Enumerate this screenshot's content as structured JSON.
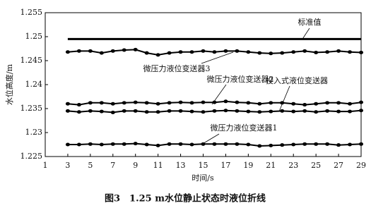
{
  "chart_data": {
    "type": "line",
    "title": "图3　1.25 m水位静止状态时液位折线",
    "x_label": "时间/s",
    "y_label": "水位高度/m",
    "x": [
      3,
      4,
      5,
      6,
      7,
      8,
      9,
      10,
      11,
      12,
      13,
      14,
      15,
      16,
      17,
      18,
      19,
      20,
      21,
      22,
      23,
      24,
      25,
      26,
      27,
      28,
      29
    ],
    "xlim": [
      1,
      29
    ],
    "xticks": [
      1,
      3,
      5,
      7,
      9,
      11,
      13,
      15,
      17,
      19,
      21,
      23,
      25,
      27,
      29
    ],
    "ylim": [
      1.225,
      1.255
    ],
    "yticks": [
      1.225,
      1.23,
      1.235,
      1.24,
      1.245,
      1.25,
      1.255
    ],
    "series": [
      {
        "name": "标准值",
        "color": "#000000",
        "markers": false,
        "values": [
          1.2495,
          1.2495,
          1.2495,
          1.2495,
          1.2495,
          1.2495,
          1.2495,
          1.2495,
          1.2495,
          1.2495,
          1.2495,
          1.2495,
          1.2495,
          1.2495,
          1.2495,
          1.2495,
          1.2495,
          1.2495,
          1.2495,
          1.2495,
          1.2495,
          1.2495,
          1.2495,
          1.2495,
          1.2495,
          1.2495,
          1.2495
        ]
      },
      {
        "name": "微压力液位变送器3",
        "color": "#000000",
        "markers": true,
        "values": [
          1.2468,
          1.247,
          1.247,
          1.2466,
          1.247,
          1.2472,
          1.2473,
          1.2466,
          1.2462,
          1.2466,
          1.2468,
          1.2468,
          1.247,
          1.2468,
          1.247,
          1.247,
          1.2468,
          1.2466,
          1.2465,
          1.2466,
          1.2468,
          1.247,
          1.2467,
          1.2468,
          1.247,
          1.2468,
          1.2467
        ]
      },
      {
        "name": "微压力液位变送器2",
        "color": "#000000",
        "markers": true,
        "values": [
          1.236,
          1.2358,
          1.2362,
          1.2362,
          1.236,
          1.2362,
          1.2363,
          1.2362,
          1.236,
          1.2362,
          1.2363,
          1.2362,
          1.2363,
          1.2363,
          1.2365,
          1.2363,
          1.2362,
          1.236,
          1.2362,
          1.2362,
          1.236,
          1.2358,
          1.236,
          1.2362,
          1.2362,
          1.236,
          1.2363
        ]
      },
      {
        "name": "投入式液位变送器",
        "color": "#000000",
        "markers": true,
        "values": [
          1.2345,
          1.2343,
          1.2345,
          1.2344,
          1.2342,
          1.2345,
          1.2345,
          1.2343,
          1.2343,
          1.2345,
          1.2345,
          1.2344,
          1.2343,
          1.2345,
          1.2346,
          1.2345,
          1.2344,
          1.2343,
          1.2344,
          1.2345,
          1.2344,
          1.2345,
          1.2343,
          1.2345,
          1.2344,
          1.2344,
          1.2346
        ]
      },
      {
        "name": "微压力液位变送器1",
        "color": "#000000",
        "markers": true,
        "values": [
          1.2275,
          1.2275,
          1.2276,
          1.2275,
          1.2276,
          1.2276,
          1.2277,
          1.2275,
          1.2273,
          1.2276,
          1.2276,
          1.2275,
          1.2276,
          1.2276,
          1.2276,
          1.2276,
          1.2275,
          1.2272,
          1.2273,
          1.2274,
          1.2275,
          1.2276,
          1.2276,
          1.2276,
          1.2274,
          1.2275,
          1.2276
        ]
      }
    ]
  }
}
